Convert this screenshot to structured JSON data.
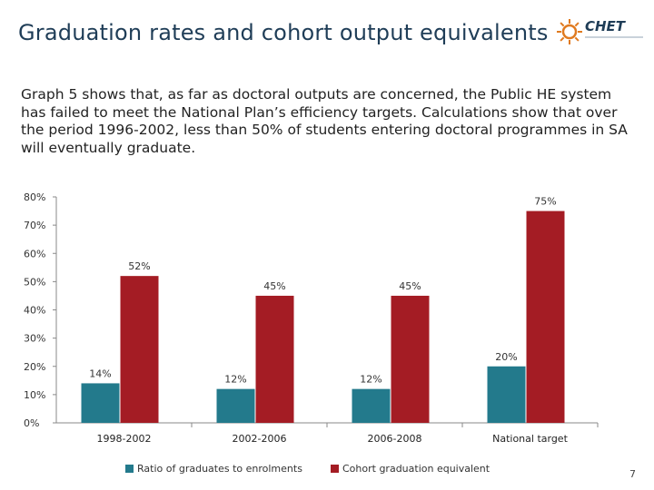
{
  "header": {
    "title": "Graduation rates and cohort output equivalents",
    "logo_text": "CHET"
  },
  "intro": {
    "text": "Graph 5 shows that, as far as doctoral outputs are concerned, the Public HE system has failed to meet the National Plan’s efficiency targets. Calculations show that over the period 1996-2002, less than 50% of students entering doctoral programmes in SA will eventually graduate."
  },
  "colors": {
    "series1": "#237a8c",
    "series2": "#a41c24",
    "axis": "#888888"
  },
  "chart_data": {
    "type": "bar",
    "title": "",
    "xlabel": "",
    "ylabel": "",
    "categories": [
      "1998-2002",
      "2002-2006",
      "2006-2008",
      "National target"
    ],
    "series": [
      {
        "name": "Ratio of graduates to enrolments",
        "values": [
          14,
          12,
          12,
          20
        ],
        "labels": [
          "14%",
          "12%",
          "12%",
          "20%"
        ]
      },
      {
        "name": "Cohort graduation equivalent",
        "values": [
          52,
          45,
          45,
          75
        ],
        "labels": [
          "52%",
          "45%",
          "45%",
          "75%"
        ]
      }
    ],
    "ylim": [
      0,
      80
    ],
    "yticks": [
      "0%",
      "10%",
      "20%",
      "30%",
      "40%",
      "50%",
      "60%",
      "70%",
      "80%"
    ],
    "grid": false,
    "legend": "bottom"
  },
  "footer": {
    "page_number": "7"
  }
}
